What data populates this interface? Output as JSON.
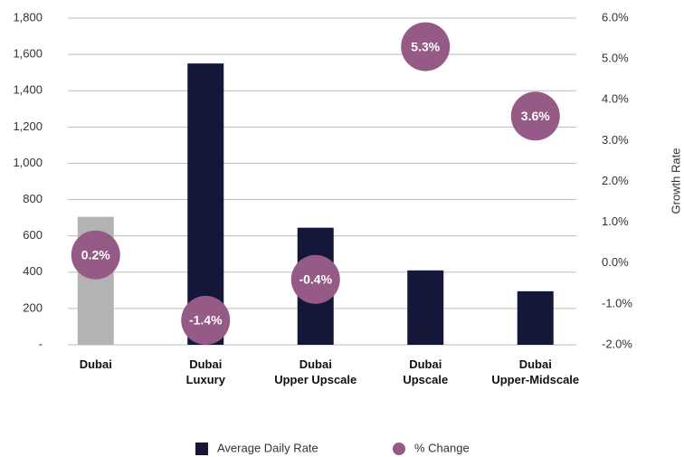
{
  "chart_data": {
    "type": "bar",
    "categories": [
      "Dubai",
      "Dubai\nLuxury",
      "Dubai\nUpper Upscale",
      "Dubai\nUpscale",
      "Dubai\nUpper-Midscale"
    ],
    "series": [
      {
        "name": "Average Daily Rate",
        "type": "bar",
        "color": "#14163a",
        "colors": [
          "#b3b3b3",
          "#14163a",
          "#14163a",
          "#14163a",
          "#14163a"
        ],
        "values": [
          705,
          1550,
          645,
          410,
          295
        ]
      },
      {
        "name": "% Change",
        "type": "scatter",
        "axis": "y2",
        "color": "#955a86",
        "values": [
          0.2,
          -1.4,
          -0.4,
          5.3,
          3.6
        ],
        "value_labels": [
          "0.2%",
          "-1.4%",
          "-0.4%",
          "5.3%",
          "3.6%"
        ]
      }
    ],
    "ylim": [
      0,
      1800
    ],
    "yticks": [
      {
        "value": 0,
        "label": "-"
      },
      200,
      400,
      600,
      800,
      {
        "value": 1000,
        "label": "1,000"
      },
      {
        "value": 1200,
        "label": "1,200"
      },
      {
        "value": 1400,
        "label": "1,400"
      },
      {
        "value": 1600,
        "label": "1,600"
      },
      {
        "value": 1800,
        "label": "1,800"
      }
    ],
    "y2lim": [
      -2,
      6
    ],
    "y2ticks": [
      {
        "value": -2,
        "label": "-2.0%"
      },
      {
        "value": -1,
        "label": "-1.0%"
      },
      {
        "value": 0,
        "label": "0.0%"
      },
      {
        "value": 1,
        "label": "1.0%"
      },
      {
        "value": 2,
        "label": "2.0%"
      },
      {
        "value": 3,
        "label": "3.0%"
      },
      {
        "value": 4,
        "label": "4.0%"
      },
      {
        "value": 5,
        "label": "5.0%"
      },
      {
        "value": 6,
        "label": "6.0%"
      }
    ],
    "y2label": "Growth Rate",
    "grid": true,
    "legend": "bottom"
  }
}
